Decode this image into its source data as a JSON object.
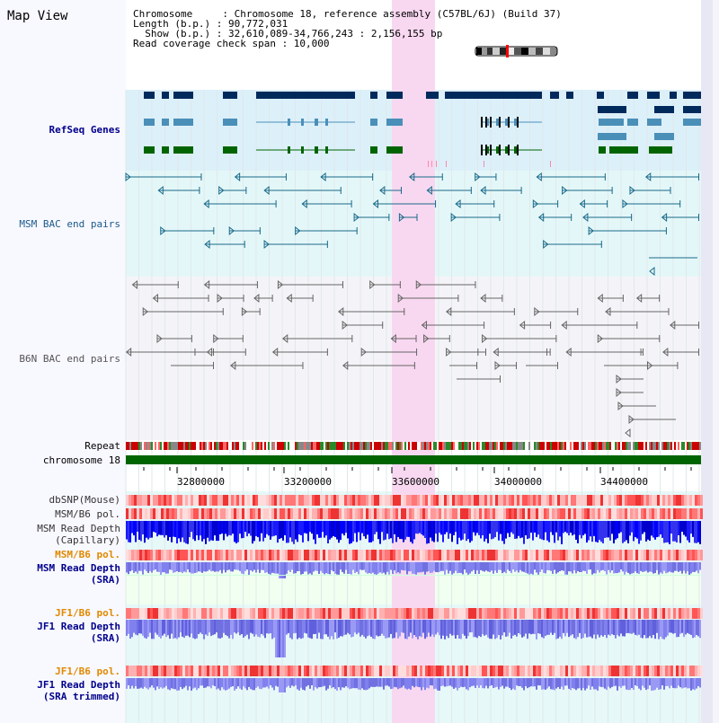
{
  "header": {
    "title": "Map View",
    "chromosome_line": "Chromosome     : Chromosome 18, reference assembly (C57BL/6J) (Build 37)",
    "length_line": "Length (b.p.) : 90,772,031",
    "show_line": "  Show (b.p.) : 32,610,089-34,766,243 : 2,156,155 bp",
    "span_line": "Read coverage check span : 10,000"
  },
  "tracks": {
    "refseq": "RefSeq Genes",
    "msm_bac": "MSM BAC end pairs",
    "b6n_bac": "B6N BAC end pairs",
    "repeat": "Repeat",
    "chromosome": "chromosome 18",
    "dbsnp": "dbSNP(Mouse)",
    "msm_b6_pol_1": "MSM/B6 pol.",
    "msm_depth_cap_1": "MSM Read Depth",
    "msm_depth_cap_2": "(Capillary)",
    "msm_b6_pol_2": "MSM/B6 pol.",
    "msm_depth_sra_1": "MSM Read Depth",
    "msm_depth_sra_2": "(SRA)",
    "jf1_b6_pol_1": "JF1/B6 pol.",
    "jf1_depth_sra_1": "JF1 Read Depth",
    "jf1_depth_sra_2": "(SRA)",
    "jf1_b6_pol_2": "JF1/B6 pol.",
    "jf1_depth_trim_1": "JF1 Read Depth",
    "jf1_depth_trim_2": "(SRA trimmed)"
  },
  "axis": {
    "ticks": [
      "32800000",
      "33200000",
      "33600000",
      "34000000",
      "34400000"
    ]
  },
  "colors": {
    "orange_label": "#e08a00",
    "blue_label": "#00008b",
    "refseq_dark": "#002a5c",
    "refseq_mid": "#4a8fb8",
    "refseq_green": "#006400",
    "highlight": "#f8d8f0"
  }
}
